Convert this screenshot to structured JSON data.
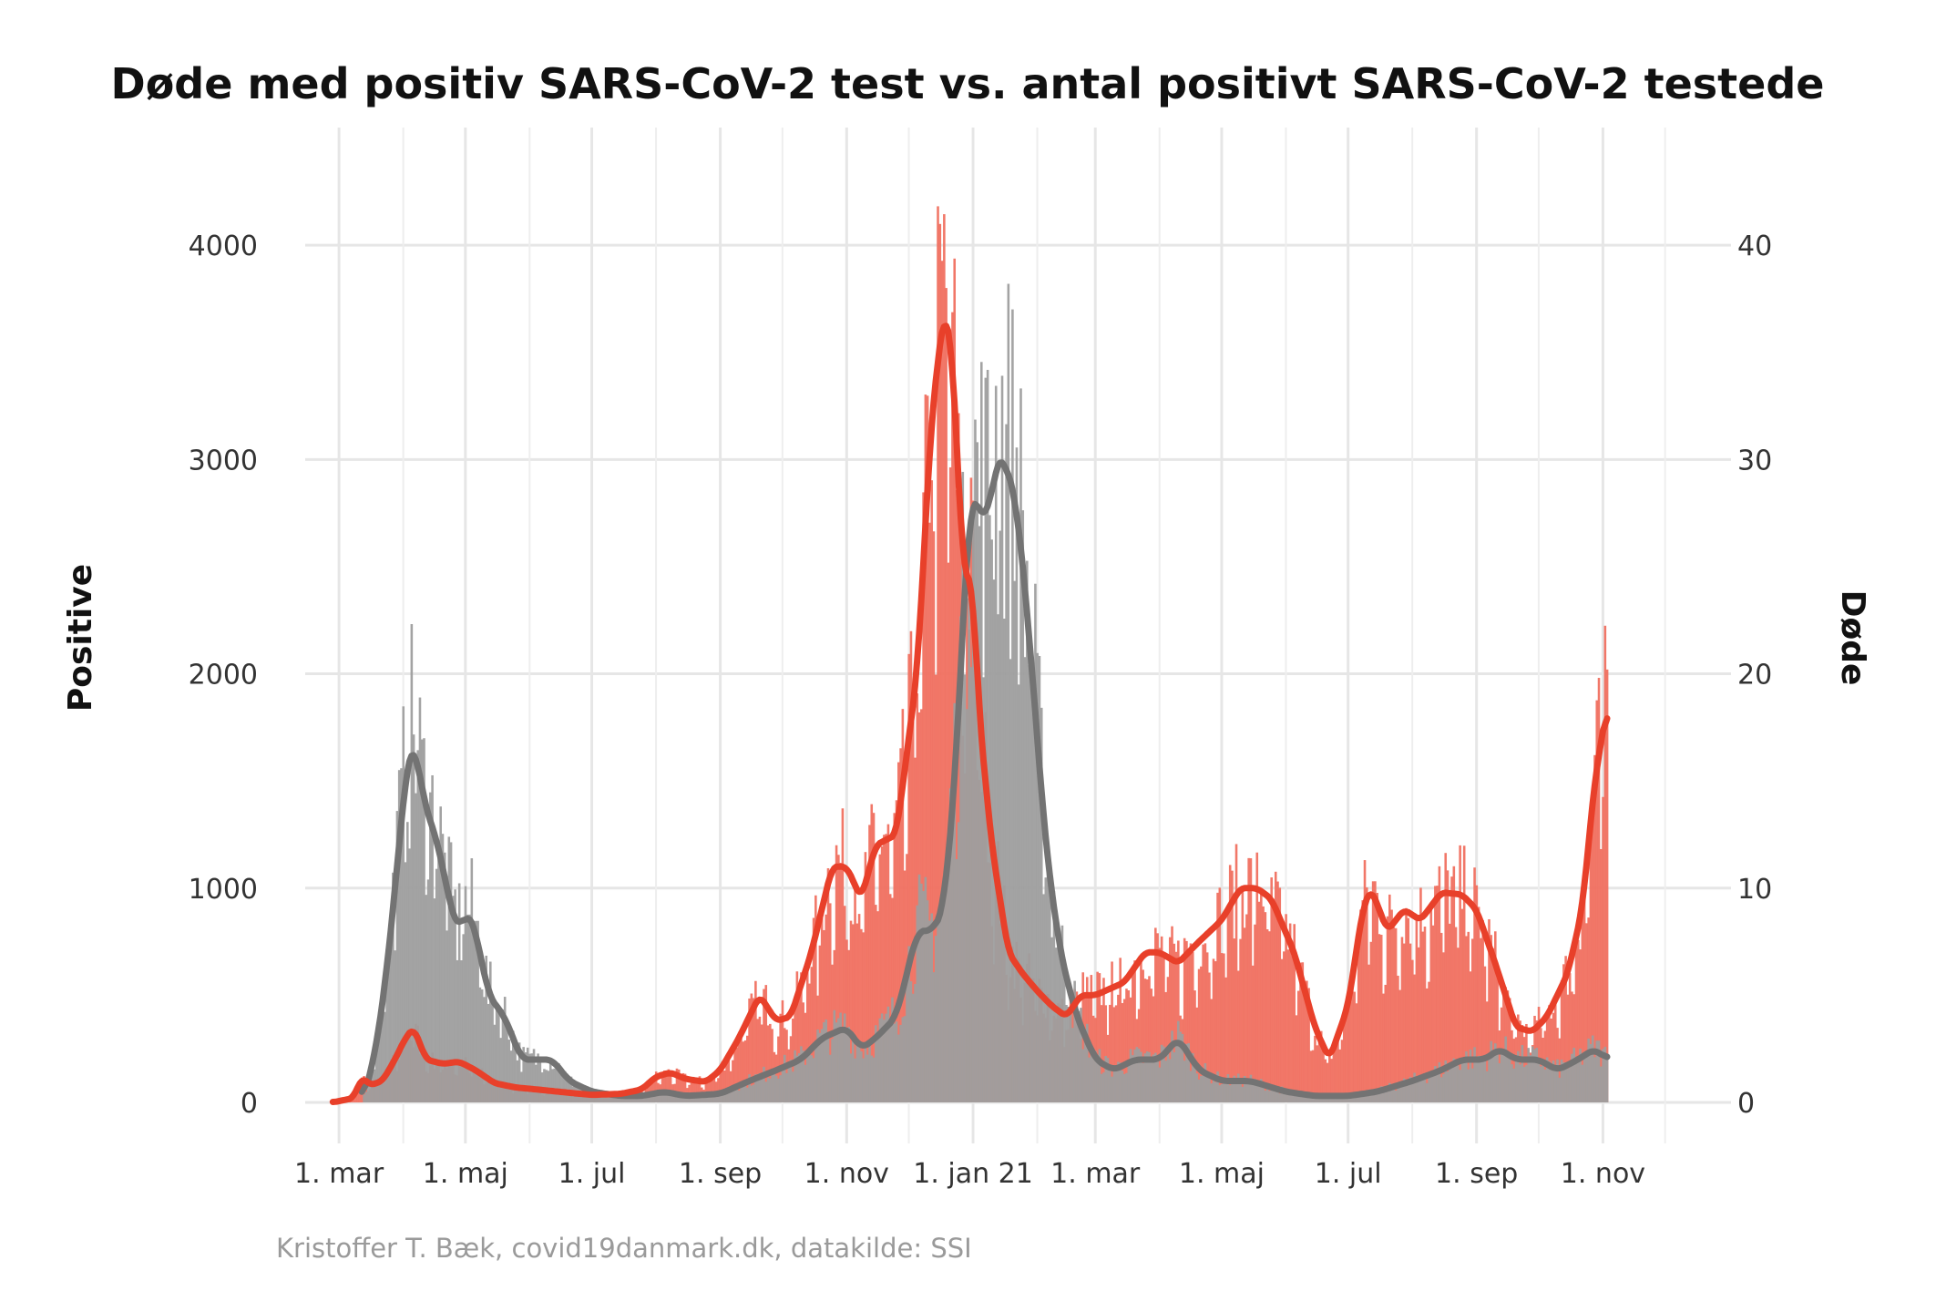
{
  "chart_data": {
    "type": "bar",
    "title": "Døde med positiv SARS-CoV-2 test vs. antal positivt SARS-CoV-2 testede",
    "caption": "Kristoffer T. Bæk, covid19danmark.dk, datakilde: SSI",
    "ylabel_left": "Positive",
    "ylabel_right": "Døde",
    "ylim_left": [
      0,
      4400
    ],
    "ylim_right": [
      0,
      44
    ],
    "yticks_left": [
      "0",
      "1000",
      "2000",
      "3000",
      "4000"
    ],
    "yticks_right": [
      "0",
      "10",
      "20",
      "30",
      "40"
    ],
    "xticks": [
      "1. mar",
      "1. maj",
      "1. jul",
      "1. sep",
      "1. nov",
      "1. jan 21",
      "1. mar",
      "1. maj",
      "1. jul",
      "1. sep",
      "1. nov"
    ],
    "xtick_dates": [
      "2020-03-01",
      "2020-05-01",
      "2020-07-01",
      "2020-09-01",
      "2020-11-01",
      "2021-01-01",
      "2021-03-01",
      "2021-05-01",
      "2021-07-01",
      "2021-09-01",
      "2021-11-01"
    ],
    "xlim": [
      "2020-01-01",
      "2021-12-31"
    ],
    "grid": true,
    "colors": {
      "positive": "#f07060",
      "deaths": "#9e9e9e",
      "positive_line": "#e8402a",
      "deaths_line": "#737373"
    },
    "series": [
      {
        "name": "Positive",
        "axis": "left",
        "style": "bars+smoothed-line",
        "points": [
          [
            "2020-02-27",
            0
          ],
          [
            "2020-03-08",
            20
          ],
          [
            "2020-03-12",
            120
          ],
          [
            "2020-03-16",
            80
          ],
          [
            "2020-03-22",
            100
          ],
          [
            "2020-03-28",
            200
          ],
          [
            "2020-04-02",
            300
          ],
          [
            "2020-04-06",
            350
          ],
          [
            "2020-04-12",
            200
          ],
          [
            "2020-04-20",
            180
          ],
          [
            "2020-04-28",
            190
          ],
          [
            "2020-05-06",
            150
          ],
          [
            "2020-05-15",
            90
          ],
          [
            "2020-05-25",
            70
          ],
          [
            "2020-06-05",
            60
          ],
          [
            "2020-06-20",
            45
          ],
          [
            "2020-07-01",
            35
          ],
          [
            "2020-07-15",
            40
          ],
          [
            "2020-07-25",
            60
          ],
          [
            "2020-08-01",
            120
          ],
          [
            "2020-08-08",
            140
          ],
          [
            "2020-08-15",
            110
          ],
          [
            "2020-08-25",
            95
          ],
          [
            "2020-09-01",
            150
          ],
          [
            "2020-09-10",
            300
          ],
          [
            "2020-09-20",
            500
          ],
          [
            "2020-09-28",
            380
          ],
          [
            "2020-10-05",
            400
          ],
          [
            "2020-10-15",
            700
          ],
          [
            "2020-10-25",
            1100
          ],
          [
            "2020-11-01",
            1100
          ],
          [
            "2020-11-08",
            950
          ],
          [
            "2020-11-15",
            1200
          ],
          [
            "2020-11-25",
            1250
          ],
          [
            "2020-12-05",
            2000
          ],
          [
            "2020-12-12",
            3200
          ],
          [
            "2020-12-18",
            3700
          ],
          [
            "2020-12-22",
            3500
          ],
          [
            "2020-12-27",
            2500
          ],
          [
            "2021-01-01",
            2400
          ],
          [
            "2021-01-04",
            1800
          ],
          [
            "2021-01-10",
            1200
          ],
          [
            "2021-01-18",
            700
          ],
          [
            "2021-01-25",
            600
          ],
          [
            "2021-02-01",
            520
          ],
          [
            "2021-02-08",
            450
          ],
          [
            "2021-02-15",
            400
          ],
          [
            "2021-02-22",
            500
          ],
          [
            "2021-03-01",
            500
          ],
          [
            "2021-03-15",
            560
          ],
          [
            "2021-03-25",
            700
          ],
          [
            "2021-04-01",
            700
          ],
          [
            "2021-04-10",
            650
          ],
          [
            "2021-04-20",
            750
          ],
          [
            "2021-05-01",
            850
          ],
          [
            "2021-05-10",
            1000
          ],
          [
            "2021-05-18",
            1000
          ],
          [
            "2021-05-25",
            950
          ],
          [
            "2021-06-05",
            700
          ],
          [
            "2021-06-15",
            350
          ],
          [
            "2021-06-22",
            200
          ],
          [
            "2021-07-01",
            450
          ],
          [
            "2021-07-08",
            900
          ],
          [
            "2021-07-12",
            1000
          ],
          [
            "2021-07-20",
            800
          ],
          [
            "2021-07-28",
            900
          ],
          [
            "2021-08-05",
            850
          ],
          [
            "2021-08-15",
            980
          ],
          [
            "2021-08-25",
            970
          ],
          [
            "2021-09-01",
            900
          ],
          [
            "2021-09-10",
            650
          ],
          [
            "2021-09-20",
            350
          ],
          [
            "2021-09-28",
            330
          ],
          [
            "2021-10-05",
            400
          ],
          [
            "2021-10-15",
            600
          ],
          [
            "2021-10-22",
            900
          ],
          [
            "2021-10-28",
            1500
          ],
          [
            "2021-11-03",
            1850
          ]
        ]
      },
      {
        "name": "Døde",
        "axis": "right",
        "style": "bars+smoothed-line",
        "points": [
          [
            "2020-03-12",
            0
          ],
          [
            "2020-03-18",
            2
          ],
          [
            "2020-03-24",
            6
          ],
          [
            "2020-03-30",
            12
          ],
          [
            "2020-04-03",
            16
          ],
          [
            "2020-04-06",
            17
          ],
          [
            "2020-04-11",
            14
          ],
          [
            "2020-04-18",
            12
          ],
          [
            "2020-04-24",
            9
          ],
          [
            "2020-04-28",
            8
          ],
          [
            "2020-05-02",
            9
          ],
          [
            "2020-05-06",
            8
          ],
          [
            "2020-05-12",
            5
          ],
          [
            "2020-05-20",
            4
          ],
          [
            "2020-05-28",
            2
          ],
          [
            "2020-06-05",
            2
          ],
          [
            "2020-06-12",
            2
          ],
          [
            "2020-06-20",
            1
          ],
          [
            "2020-07-01",
            0.5
          ],
          [
            "2020-07-15",
            0.3
          ],
          [
            "2020-07-25",
            0.3
          ],
          [
            "2020-08-05",
            0.5
          ],
          [
            "2020-08-15",
            0.3
          ],
          [
            "2020-09-01",
            0.4
          ],
          [
            "2020-09-15",
            1
          ],
          [
            "2020-09-28",
            1.5
          ],
          [
            "2020-10-10",
            2
          ],
          [
            "2020-10-20",
            3
          ],
          [
            "2020-11-01",
            3.5
          ],
          [
            "2020-11-08",
            2.5
          ],
          [
            "2020-11-15",
            3
          ],
          [
            "2020-11-25",
            4
          ],
          [
            "2020-12-05",
            8
          ],
          [
            "2020-12-12",
            8
          ],
          [
            "2020-12-18",
            9
          ],
          [
            "2020-12-24",
            16
          ],
          [
            "2020-12-30",
            28
          ],
          [
            "2021-01-03",
            28
          ],
          [
            "2021-01-08",
            27
          ],
          [
            "2021-01-12",
            30
          ],
          [
            "2021-01-16",
            30
          ],
          [
            "2021-01-22",
            28
          ],
          [
            "2021-01-28",
            22
          ],
          [
            "2021-02-05",
            12
          ],
          [
            "2021-02-12",
            7
          ],
          [
            "2021-02-20",
            4
          ],
          [
            "2021-03-01",
            2
          ],
          [
            "2021-03-10",
            1.5
          ],
          [
            "2021-03-20",
            2
          ],
          [
            "2021-04-01",
            2
          ],
          [
            "2021-04-10",
            3
          ],
          [
            "2021-04-20",
            1.5
          ],
          [
            "2021-05-01",
            1
          ],
          [
            "2021-05-15",
            1
          ],
          [
            "2021-06-01",
            0.5
          ],
          [
            "2021-06-15",
            0.3
          ],
          [
            "2021-07-01",
            0.3
          ],
          [
            "2021-07-15",
            0.5
          ],
          [
            "2021-08-01",
            1
          ],
          [
            "2021-08-15",
            1.5
          ],
          [
            "2021-08-25",
            2
          ],
          [
            "2021-09-05",
            2
          ],
          [
            "2021-09-12",
            2.5
          ],
          [
            "2021-09-20",
            2
          ],
          [
            "2021-10-01",
            2
          ],
          [
            "2021-10-10",
            1.5
          ],
          [
            "2021-10-20",
            2
          ],
          [
            "2021-10-28",
            2.5
          ],
          [
            "2021-11-03",
            2
          ]
        ]
      }
    ]
  }
}
